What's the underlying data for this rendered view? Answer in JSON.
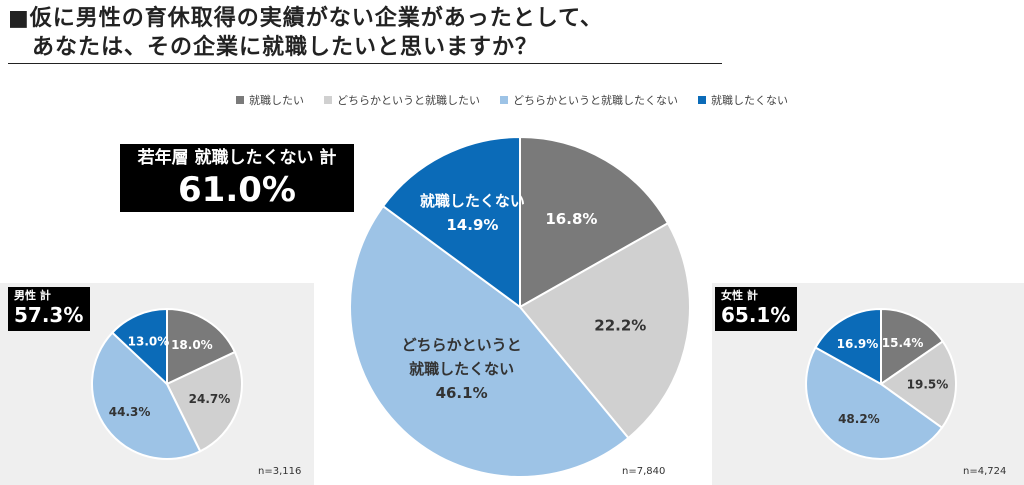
{
  "title": {
    "line1": "■仮に男性の育休取得の実績がない企業があったとして、",
    "line2": "あなたは、その企業に就職したいと思いますか？"
  },
  "legend": [
    {
      "label": "就職したい",
      "color": "#7a7a7a"
    },
    {
      "label": "どちらかというと就職したい",
      "color": "#d0d0d0"
    },
    {
      "label": "どちらかというと就職したくない",
      "color": "#9dc3e6"
    },
    {
      "label": "就職したくない",
      "color": "#0b6bb8"
    }
  ],
  "highlight": {
    "label": "若年層 就職したくない 計",
    "value": "61.0%"
  },
  "left_badge": {
    "label": "男性 計",
    "value": "57.3%"
  },
  "right_badge": {
    "label": "女性 計",
    "value": "65.1%"
  },
  "chart_data": [
    {
      "type": "pie",
      "name": "若年層",
      "n": "n=7,840",
      "categories": [
        "就職したい",
        "どちらかというと就職したい",
        "どちらかというと就職したくない",
        "就職したくない"
      ],
      "values": [
        16.8,
        22.2,
        46.1,
        14.9
      ],
      "labels": [
        "16.8%",
        "22.2%",
        "どちらかというと|就職したくない|46.1%",
        "就職したくない|14.9%"
      ]
    },
    {
      "type": "pie",
      "name": "男性",
      "n": "n=3,116",
      "categories": [
        "就職したい",
        "どちらかというと就職したい",
        "どちらかというと就職したくない",
        "就職したくない"
      ],
      "values": [
        18.0,
        24.7,
        44.3,
        13.0
      ],
      "labels": [
        "18.0%",
        "24.7%",
        "44.3%",
        "13.0%"
      ]
    },
    {
      "type": "pie",
      "name": "女性",
      "n": "n=4,724",
      "categories": [
        "就職したい",
        "どちらかというと就職したい",
        "どちらかというと就職したくない",
        "就職したくない"
      ],
      "values": [
        15.4,
        19.5,
        48.2,
        16.9
      ],
      "labels": [
        "15.4%",
        "19.5%",
        "48.2%",
        "16.9%"
      ]
    }
  ]
}
